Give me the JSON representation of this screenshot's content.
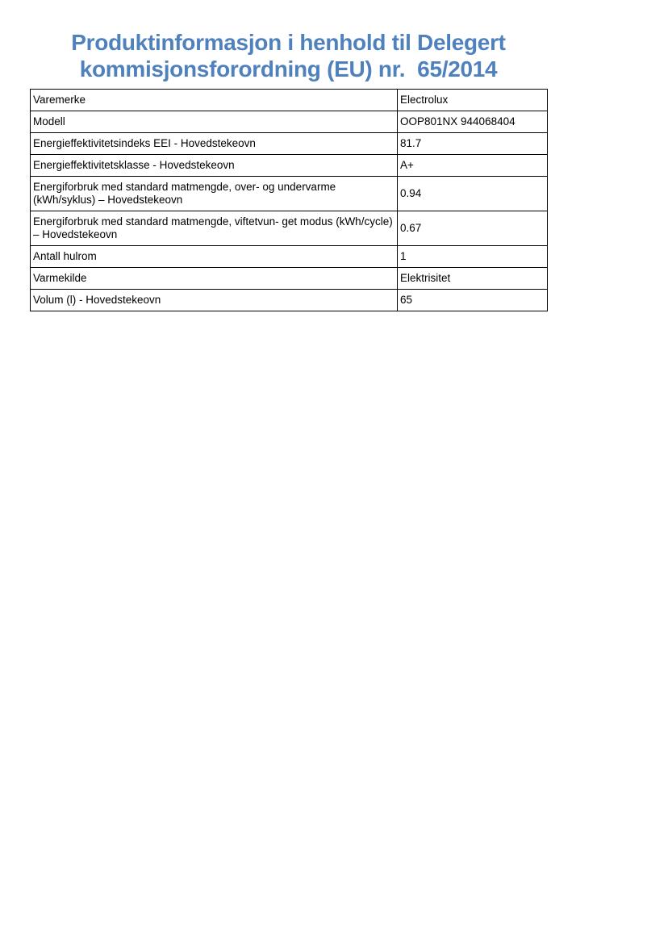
{
  "header": {
    "title_lines": [
      "Produktinformasjon i henhold til Delegert",
      "kommisjonsforordning (EU) nr.  65/2014"
    ]
  },
  "colors": {
    "title_blue": "#4f81bd",
    "table_border": "#000000",
    "page_background": "#ffffff"
  },
  "table": {
    "rows": [
      {
        "label": "Varemerke",
        "value": "Electrolux"
      },
      {
        "label": "Modell",
        "value": "OOP801NX 944068404"
      },
      {
        "label": "Energieffektivitetsindeks EEI - Hovedstekeovn",
        "value": "81.7"
      },
      {
        "label": "Energieffektivitetsklasse - Hovedstekeovn",
        "value": "A+"
      },
      {
        "label": "Energiforbruk med standard matmengde, over- og undervarme (kWh/syklus) – Hovedstekeovn",
        "value": "0.94"
      },
      {
        "label": "Energiforbruk med standard matmengde, viftetvun- get modus (kWh/cycle) – Hovedstekeovn",
        "value": "0.67"
      },
      {
        "label": "Antall hulrom",
        "value": "1"
      },
      {
        "label": "Varmekilde",
        "value": "Elektrisitet"
      },
      {
        "label": "Volum (l) - Hovedstekeovn",
        "value": "65"
      }
    ]
  }
}
